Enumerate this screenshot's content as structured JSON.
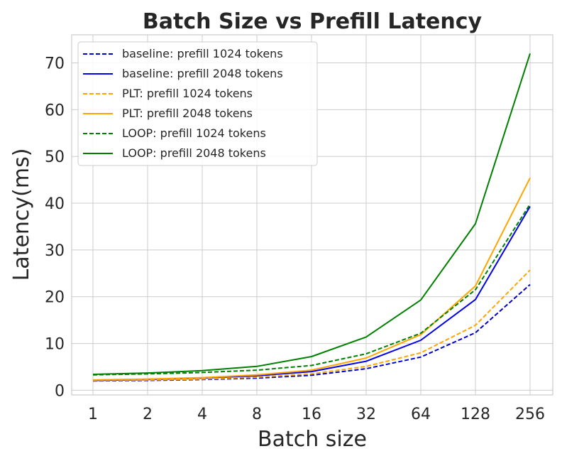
{
  "chart_data": {
    "type": "line",
    "title": "Batch Size vs Prefill Latency",
    "xlabel": "Batch size",
    "ylabel": "Latency(ms)",
    "x": [
      "1",
      "2",
      "4",
      "8",
      "16",
      "32",
      "64",
      "128",
      "256"
    ],
    "ylim": [
      -1,
      76
    ],
    "yticks": [
      0,
      10,
      20,
      30,
      40,
      50,
      60,
      70
    ],
    "grid": true,
    "legend_position": "top-left",
    "series": [
      {
        "name": "baseline: prefill 1024 tokens",
        "color": "#0000cc",
        "dashed": true,
        "values": [
          2.0,
          2.1,
          2.3,
          2.6,
          3.2,
          4.6,
          7.1,
          12.3,
          22.6
        ]
      },
      {
        "name": "baseline: prefill 2048 tokens",
        "color": "#0000ee",
        "dashed": false,
        "values": [
          2.1,
          2.3,
          2.6,
          3.1,
          4.0,
          6.2,
          10.7,
          19.4,
          39.3
        ]
      },
      {
        "name": "PLT: prefill 1024 tokens",
        "color": "#ffa500",
        "dashed": true,
        "values": [
          2.1,
          2.2,
          2.4,
          2.8,
          3.5,
          5.1,
          8.0,
          13.9,
          25.7
        ]
      },
      {
        "name": "PLT: prefill 2048 tokens",
        "color": "#ffa500",
        "dashed": false,
        "values": [
          2.2,
          2.4,
          2.7,
          3.3,
          4.3,
          6.9,
          11.9,
          22.3,
          45.4
        ]
      },
      {
        "name": "LOOP: prefill 1024 tokens",
        "color": "#008000",
        "dashed": true,
        "values": [
          3.3,
          3.5,
          3.8,
          4.3,
          5.3,
          7.8,
          12.2,
          21.5,
          39.8
        ]
      },
      {
        "name": "LOOP: prefill 2048 tokens",
        "color": "#008000",
        "dashed": false,
        "values": [
          3.4,
          3.7,
          4.2,
          5.1,
          7.2,
          11.4,
          19.3,
          35.6,
          72.0
        ]
      }
    ]
  }
}
